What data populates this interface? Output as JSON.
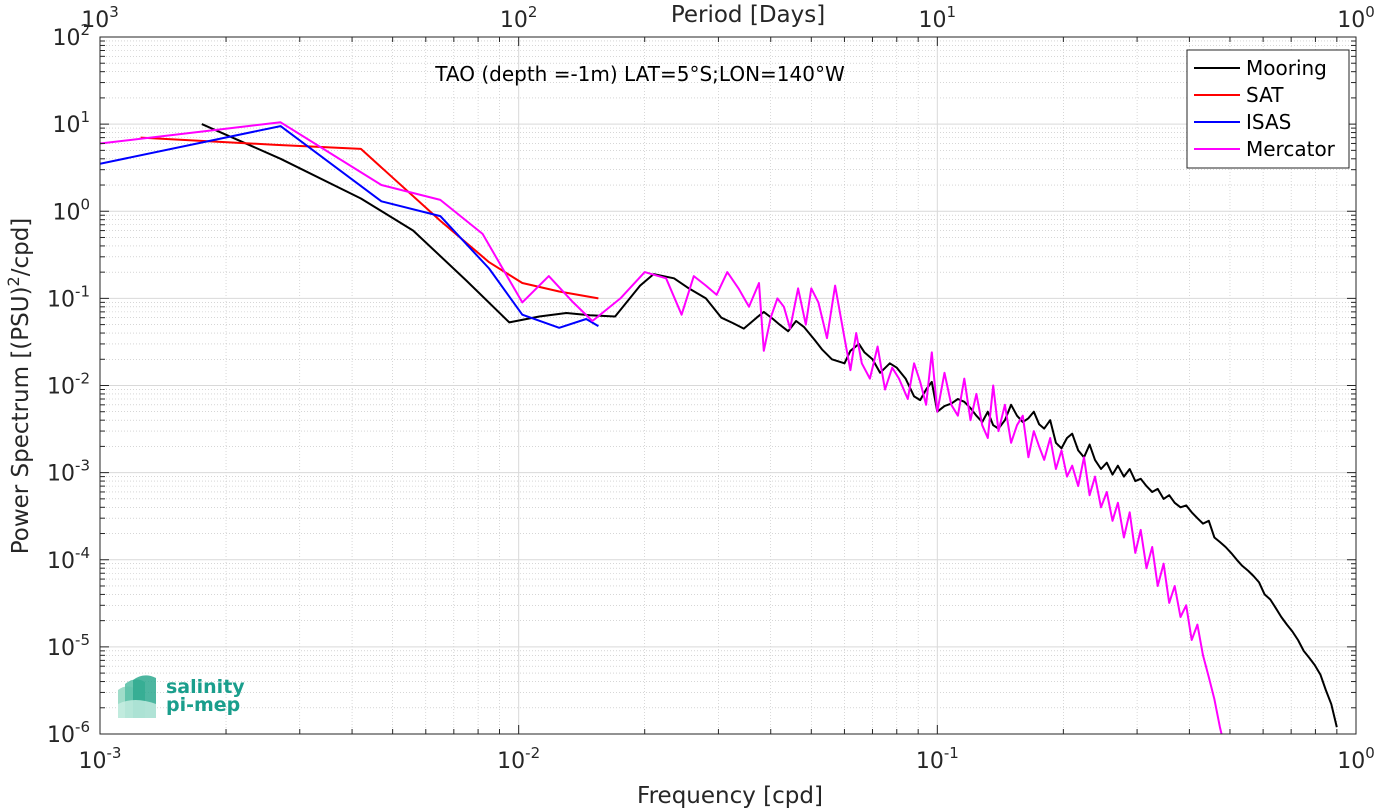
{
  "chart_data": {
    "type": "line",
    "title": "TAO (depth =-1m) LAT=5°S;LON=140°W",
    "xlabel": "Frequency [cpd]",
    "ylabel_main": "Power Spectrum [(PSU)",
    "ylabel_sup": "2",
    "ylabel_tail": "/cpd]",
    "top_xlabel": "Period [Days]",
    "xscale": "log",
    "yscale": "log",
    "xlim": [
      0.001,
      1
    ],
    "ylim": [
      1e-06,
      100
    ],
    "grid": true,
    "minor_grid": true,
    "legend_position": "top-right",
    "x_ticks": [
      {
        "value": 0.001,
        "base": "10",
        "exp": "-3"
      },
      {
        "value": 0.01,
        "base": "10",
        "exp": "-2"
      },
      {
        "value": 0.1,
        "base": "10",
        "exp": "-1"
      },
      {
        "value": 1,
        "base": "10",
        "exp": "0"
      }
    ],
    "y_ticks": [
      {
        "value": 1e-06,
        "base": "10",
        "exp": "-6"
      },
      {
        "value": 1e-05,
        "base": "10",
        "exp": "-5"
      },
      {
        "value": 0.0001,
        "base": "10",
        "exp": "-4"
      },
      {
        "value": 0.001,
        "base": "10",
        "exp": "-3"
      },
      {
        "value": 0.01,
        "base": "10",
        "exp": "-2"
      },
      {
        "value": 0.1,
        "base": "10",
        "exp": "-1"
      },
      {
        "value": 1,
        "base": "10",
        "exp": "0"
      },
      {
        "value": 10,
        "base": "10",
        "exp": "1"
      },
      {
        "value": 100,
        "base": "10",
        "exp": "2"
      }
    ],
    "top_ticks": [
      {
        "value": 0.001,
        "base": "10",
        "exp": "3"
      },
      {
        "value": 0.01,
        "base": "10",
        "exp": "2"
      },
      {
        "value": 0.1,
        "base": "10",
        "exp": "1"
      },
      {
        "value": 1,
        "base": "10",
        "exp": "0"
      }
    ],
    "series": [
      {
        "name": "Mooring",
        "color": "#000000",
        "x": [
          0.00175,
          0.0027,
          0.0042,
          0.0056,
          0.0075,
          0.0095,
          0.0112,
          0.013,
          0.0148,
          0.017,
          0.0195,
          0.021,
          0.0235,
          0.0255,
          0.028,
          0.0305,
          0.0325,
          0.0345,
          0.037,
          0.0385,
          0.0405,
          0.042,
          0.044,
          0.046,
          0.048,
          0.051,
          0.053,
          0.056,
          0.06,
          0.062,
          0.065,
          0.067,
          0.07,
          0.073,
          0.077,
          0.08,
          0.084,
          0.088,
          0.091,
          0.094,
          0.097,
          0.1,
          0.104,
          0.108,
          0.112,
          0.116,
          0.12,
          0.124,
          0.128,
          0.132,
          0.136,
          0.14,
          0.145,
          0.15,
          0.155,
          0.16,
          0.165,
          0.17,
          0.175,
          0.18,
          0.186,
          0.192,
          0.198,
          0.204,
          0.21,
          0.217,
          0.224,
          0.231,
          0.238,
          0.246,
          0.254,
          0.262,
          0.27,
          0.279,
          0.288,
          0.297,
          0.306,
          0.316,
          0.326,
          0.336,
          0.347,
          0.358,
          0.369,
          0.381,
          0.393,
          0.405,
          0.418,
          0.431,
          0.445,
          0.459,
          0.473,
          0.488,
          0.503,
          0.519,
          0.535,
          0.552,
          0.569,
          0.587,
          0.605,
          0.624,
          0.643,
          0.663,
          0.684,
          0.705,
          0.727,
          0.75,
          0.773,
          0.797,
          0.822,
          0.847,
          0.873,
          0.9
        ],
        "y": [
          10,
          4.0,
          1.4,
          0.6,
          0.16,
          0.053,
          0.062,
          0.068,
          0.064,
          0.062,
          0.14,
          0.19,
          0.17,
          0.13,
          0.1,
          0.06,
          0.052,
          0.045,
          0.06,
          0.07,
          0.058,
          0.05,
          0.042,
          0.055,
          0.047,
          0.033,
          0.026,
          0.02,
          0.018,
          0.025,
          0.03,
          0.024,
          0.02,
          0.014,
          0.018,
          0.016,
          0.012,
          0.0075,
          0.0068,
          0.009,
          0.011,
          0.005,
          0.0058,
          0.0062,
          0.007,
          0.0065,
          0.0055,
          0.0045,
          0.0038,
          0.005,
          0.0035,
          0.0032,
          0.004,
          0.006,
          0.0045,
          0.0038,
          0.0042,
          0.005,
          0.0036,
          0.0032,
          0.004,
          0.0022,
          0.0019,
          0.0025,
          0.0028,
          0.0018,
          0.0015,
          0.0021,
          0.0014,
          0.0011,
          0.0013,
          0.00095,
          0.0012,
          0.0009,
          0.0011,
          0.0008,
          0.00085,
          0.0007,
          0.0006,
          0.00065,
          0.0005,
          0.00055,
          0.00045,
          0.0004,
          0.00042,
          0.00035,
          0.0003,
          0.00026,
          0.00028,
          0.00018,
          0.00016,
          0.00014,
          0.00012,
          0.0001,
          8.5e-05,
          7.5e-05,
          6.5e-05,
          5.5e-05,
          4e-05,
          3.5e-05,
          2.8e-05,
          2.2e-05,
          1.8e-05,
          1.5e-05,
          1.2e-05,
          9e-06,
          7.5e-06,
          6.2e-06,
          4.8e-06,
          3.2e-06,
          2.2e-06,
          1.2e-06
        ]
      },
      {
        "name": "SAT",
        "color": "#ff0000",
        "x": [
          0.00125,
          0.0026,
          0.0042,
          0.0065,
          0.0085,
          0.0102,
          0.0125,
          0.0155
        ],
        "y": [
          7.0,
          5.8,
          5.2,
          0.78,
          0.26,
          0.15,
          0.12,
          0.1
        ]
      },
      {
        "name": "ISAS",
        "color": "#0000ff",
        "x": [
          0.001,
          0.0027,
          0.0047,
          0.0065,
          0.0085,
          0.0102,
          0.0125,
          0.0145,
          0.0155
        ],
        "y": [
          3.5,
          9.5,
          1.3,
          0.88,
          0.22,
          0.065,
          0.046,
          0.058,
          0.048
        ]
      },
      {
        "name": "Mercator",
        "color": "#ff00ff",
        "x": [
          0.001,
          0.0027,
          0.0047,
          0.0065,
          0.0082,
          0.0102,
          0.0118,
          0.0135,
          0.015,
          0.0175,
          0.02,
          0.0225,
          0.0245,
          0.0262,
          0.028,
          0.0297,
          0.0315,
          0.0335,
          0.0355,
          0.0375,
          0.0385,
          0.04,
          0.0415,
          0.043,
          0.0445,
          0.0465,
          0.0485,
          0.05,
          0.052,
          0.0545,
          0.057,
          0.06,
          0.062,
          0.064,
          0.066,
          0.069,
          0.072,
          0.075,
          0.078,
          0.081,
          0.085,
          0.088,
          0.091,
          0.094,
          0.097,
          0.1,
          0.104,
          0.108,
          0.112,
          0.116,
          0.12,
          0.124,
          0.128,
          0.132,
          0.136,
          0.14,
          0.145,
          0.15,
          0.155,
          0.16,
          0.165,
          0.17,
          0.175,
          0.18,
          0.186,
          0.192,
          0.198,
          0.204,
          0.21,
          0.217,
          0.224,
          0.231,
          0.238,
          0.246,
          0.254,
          0.262,
          0.27,
          0.279,
          0.288,
          0.297,
          0.306,
          0.316,
          0.326,
          0.336,
          0.347,
          0.358,
          0.369,
          0.381,
          0.393,
          0.405,
          0.418,
          0.431,
          0.445,
          0.459,
          0.473,
          0.48
        ],
        "y": [
          6.0,
          10.5,
          2.0,
          1.35,
          0.55,
          0.09,
          0.18,
          0.09,
          0.055,
          0.1,
          0.2,
          0.17,
          0.065,
          0.18,
          0.14,
          0.11,
          0.2,
          0.13,
          0.08,
          0.15,
          0.025,
          0.06,
          0.1,
          0.08,
          0.045,
          0.13,
          0.05,
          0.13,
          0.09,
          0.035,
          0.14,
          0.035,
          0.015,
          0.04,
          0.018,
          0.012,
          0.028,
          0.009,
          0.016,
          0.012,
          0.007,
          0.018,
          0.011,
          0.006,
          0.024,
          0.005,
          0.014,
          0.006,
          0.0045,
          0.012,
          0.004,
          0.008,
          0.0035,
          0.0025,
          0.01,
          0.003,
          0.006,
          0.0022,
          0.0035,
          0.0045,
          0.0015,
          0.003,
          0.002,
          0.0014,
          0.0025,
          0.0011,
          0.0018,
          0.0009,
          0.0012,
          0.0007,
          0.0015,
          0.00055,
          0.0009,
          0.0004,
          0.0006,
          0.00028,
          0.00045,
          0.00018,
          0.00035,
          0.00012,
          0.00022,
          8e-05,
          0.00014,
          5e-05,
          9e-05,
          3.2e-05,
          5e-05,
          2.2e-05,
          3e-05,
          1.2e-05,
          1.8e-05,
          8e-06,
          4.5e-06,
          2.5e-06,
          1.2e-06,
          9e-07
        ]
      }
    ],
    "logo": {
      "line1": "salinity",
      "line2": "pi-mep"
    }
  }
}
